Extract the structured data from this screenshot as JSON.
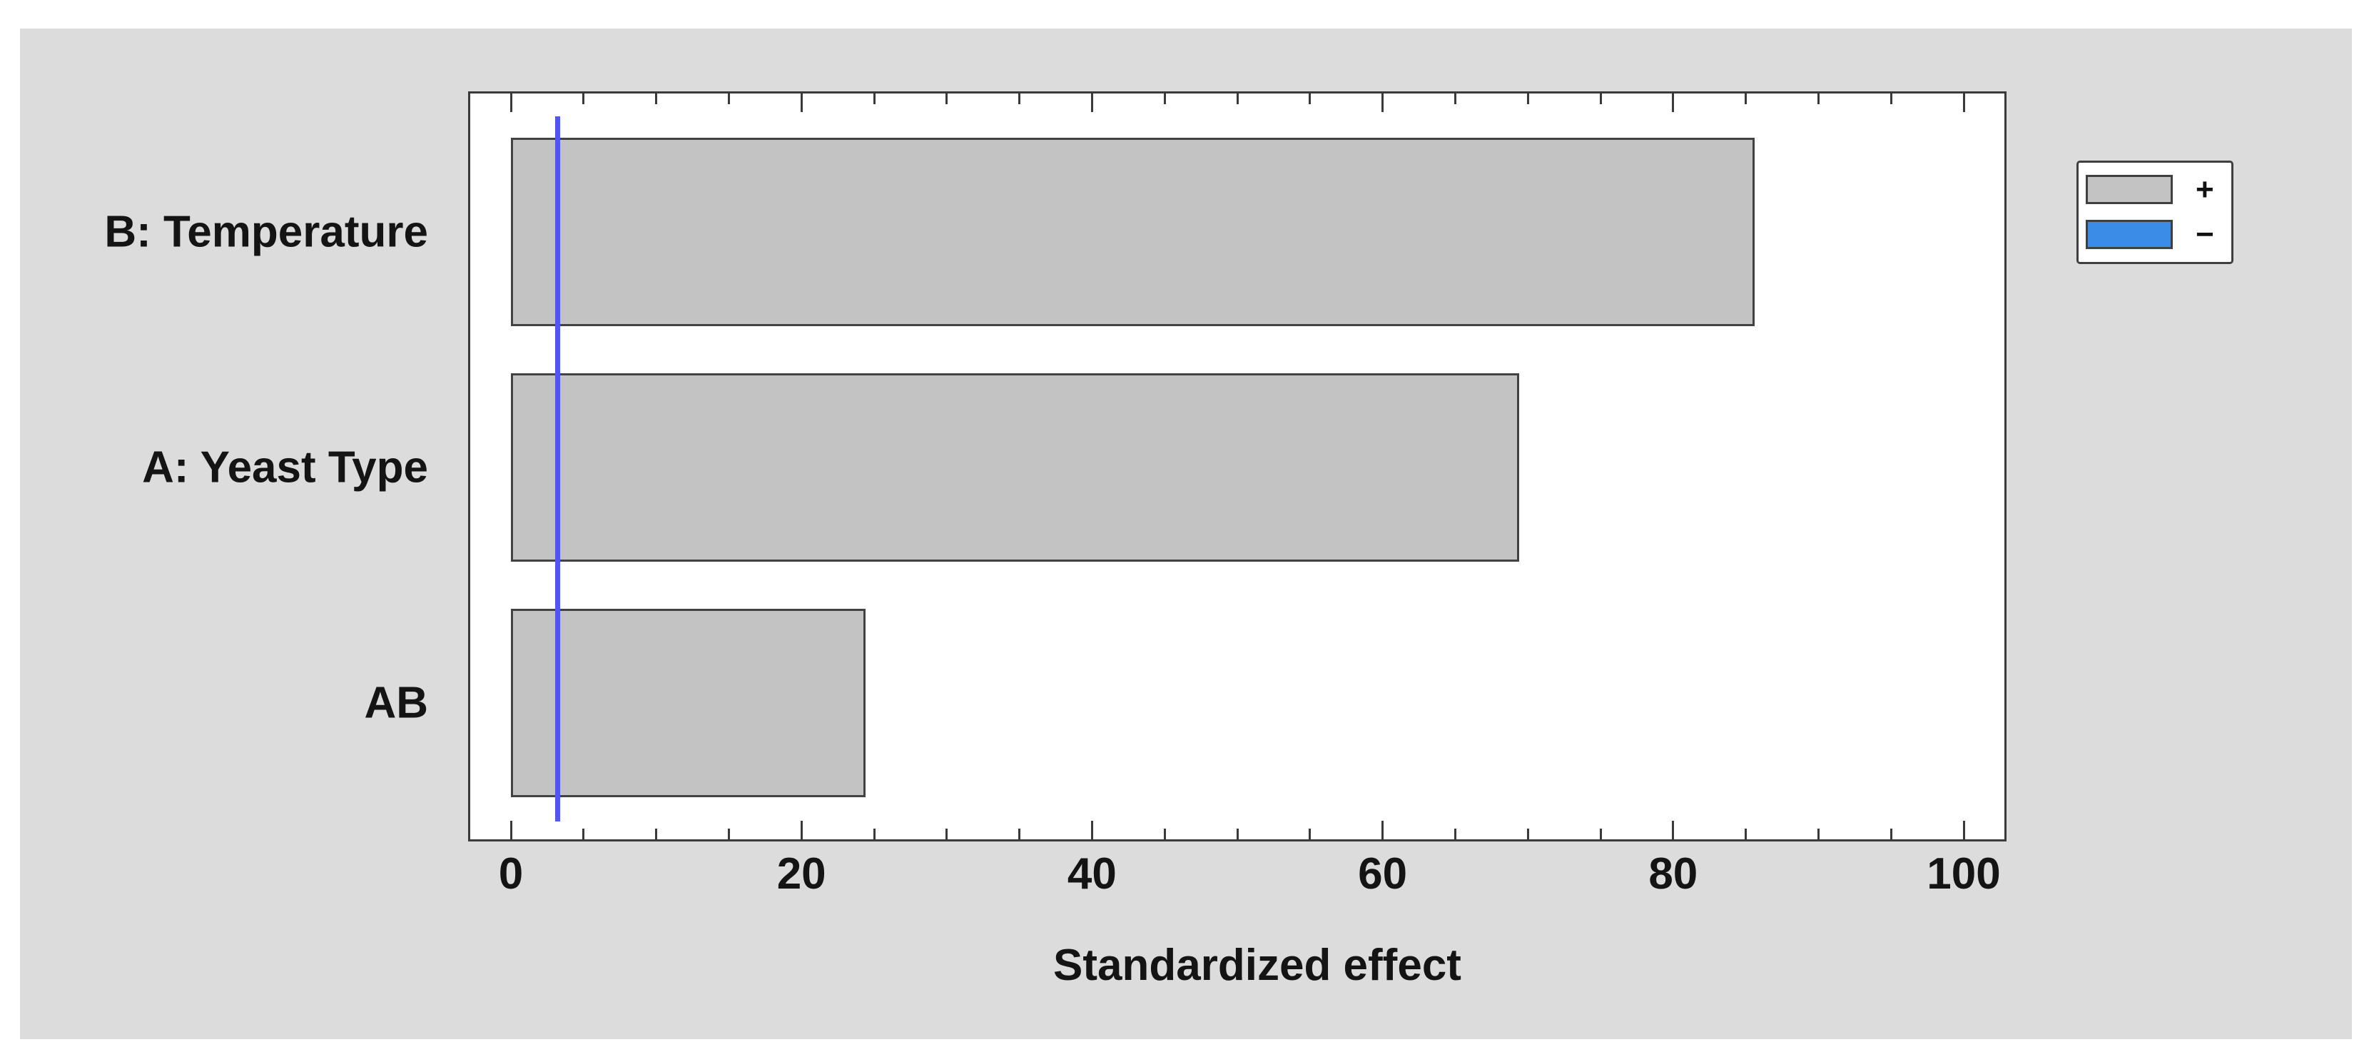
{
  "chart_data": {
    "type": "bar",
    "orientation": "horizontal",
    "title": "",
    "xlabel": "Standardized effect",
    "categories": [
      "B: Temperature",
      "A: Yeast Type",
      "AB"
    ],
    "values": [
      85.6,
      69.4,
      24.4
    ],
    "bar_signs": [
      "+",
      "+",
      "+"
    ],
    "xlim": [
      -3,
      103
    ],
    "x_major_ticks": [
      0,
      20,
      40,
      60,
      80,
      100
    ],
    "x_minor_tick_step": 5,
    "reference_line_x": 3.2,
    "grid": "off",
    "legend_position": "top-right",
    "legend_entries": [
      {
        "symbol": "+",
        "color": "#c3c3c3"
      },
      {
        "symbol": "−",
        "color": "#3a8ce4"
      }
    ],
    "colors": {
      "positive_bar_fill": "#c3c3c3",
      "negative_bar_fill": "#3a8ce4",
      "bar_border": "#424242",
      "reference_line": "#5355ef",
      "panel_background": "#dcdcdc",
      "plot_background": "#ffffff",
      "axis": "#3a3a3a",
      "text": "#141414"
    }
  }
}
